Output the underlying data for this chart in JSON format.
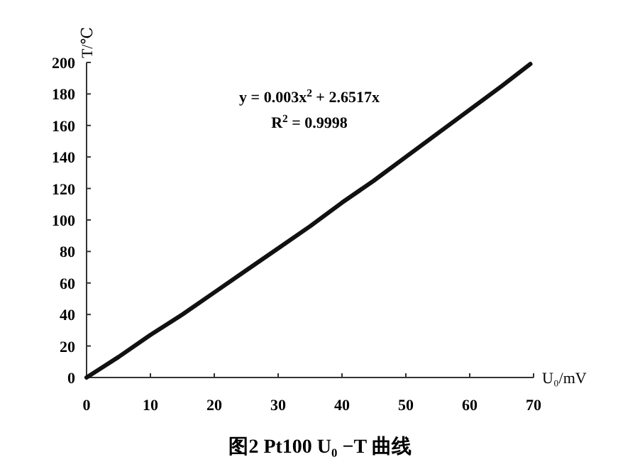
{
  "chart_data": {
    "type": "line",
    "title": "图2 Pt100 U₀ −T 曲线",
    "xlabel": "U₀/mV",
    "ylabel": "T/℃",
    "annotations": [
      "y = 0.003x$^{2}$ + 2.6517x",
      "R$^{2}$ = 0.9998"
    ],
    "x": [
      0,
      5,
      10,
      15,
      20,
      25,
      30,
      35,
      40,
      45,
      50,
      55,
      60,
      65,
      69.5
    ],
    "series": [
      {
        "color": "#111111",
        "values": [
          0,
          13,
          27,
          40,
          54,
          68,
          82,
          96,
          111,
          125,
          140,
          155,
          170,
          185,
          199
        ]
      }
    ],
    "xlim": [
      0,
      70
    ],
    "ylim": [
      0,
      200
    ],
    "xticks": [
      0,
      10,
      20,
      30,
      40,
      50,
      60,
      70
    ],
    "yticks": [
      0,
      20,
      40,
      60,
      80,
      100,
      120,
      140,
      160,
      180,
      200
    ],
    "line_style": "solid"
  }
}
